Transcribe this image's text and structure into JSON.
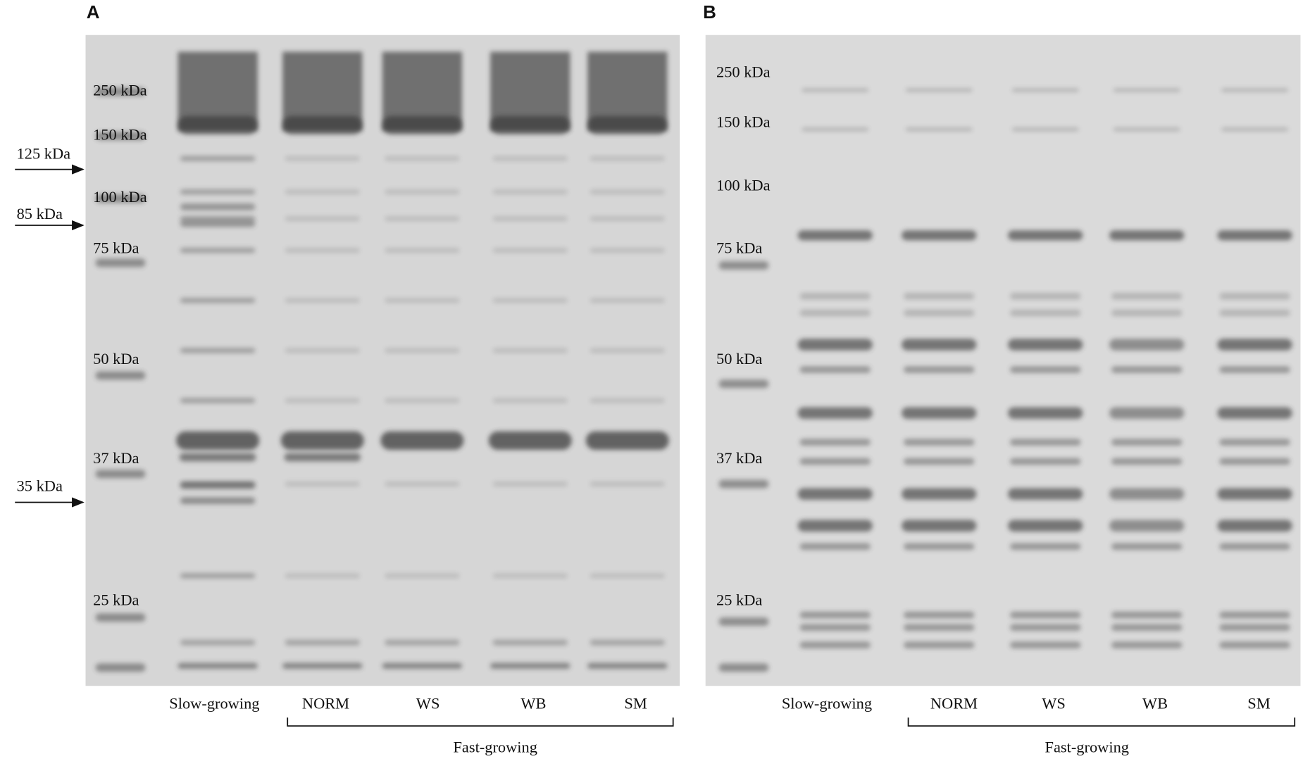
{
  "panels": [
    {
      "label": "A",
      "markers": [
        "250 kDa",
        "150 kDa",
        "100 kDa",
        "75 kDa",
        "50 kDa",
        "37 kDa",
        "25 kDa"
      ],
      "arrows": [
        "125 kDa",
        "85 kDa",
        "35 kDa"
      ],
      "lanes": [
        "Slow-growing",
        "NORM",
        "WS",
        "WB",
        "SM"
      ],
      "group": "Fast-growing"
    },
    {
      "label": "B",
      "markers": [
        "250 kDa",
        "150 kDa",
        "100 kDa",
        "75 kDa",
        "50 kDa",
        "37 kDa",
        "25 kDa"
      ],
      "lanes": [
        "Slow-growing",
        "NORM",
        "WS",
        "WB",
        "SM"
      ],
      "group": "Fast-growing"
    }
  ]
}
